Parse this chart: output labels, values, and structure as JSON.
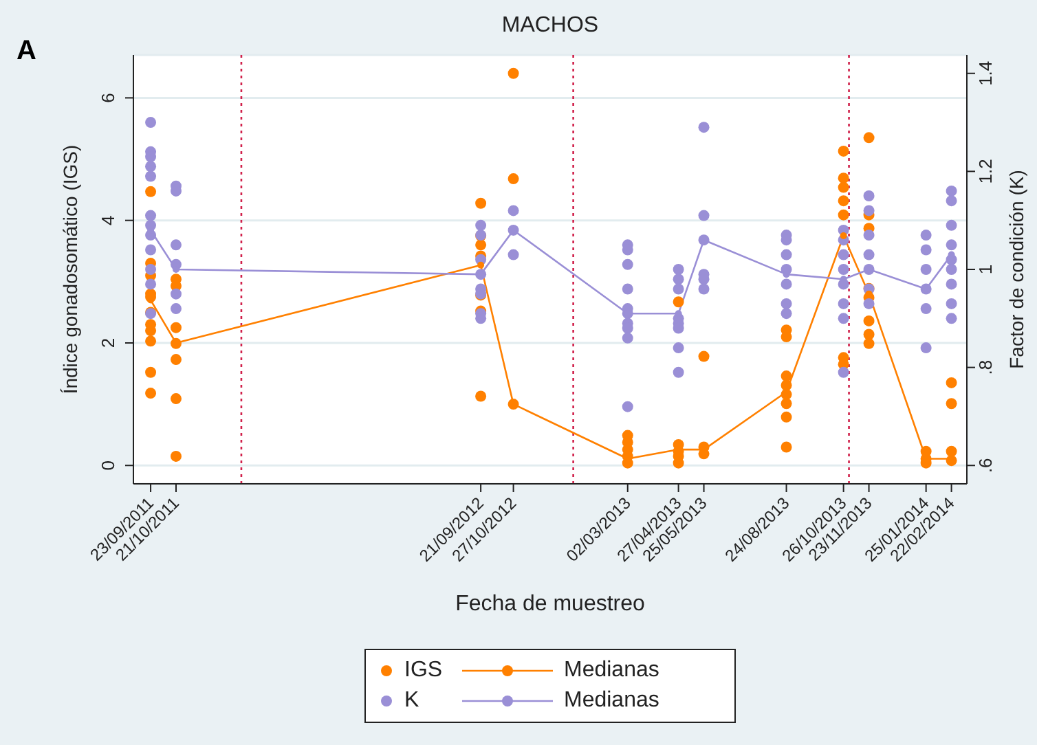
{
  "chart_data": {
    "type": "scatter",
    "title": "MACHOS",
    "xlabel": "Fecha de muestreo",
    "ylabel": "Índice gonadosomático (IGS)",
    "y2label": "Factor de condición (K)",
    "annotations": [
      "A"
    ],
    "xlim": [
      "2011-09-04",
      "2014-03-11"
    ],
    "xticks": [
      {
        "value": "2011-09-23",
        "label": "23/09/2011"
      },
      {
        "value": "2011-10-21",
        "label": "21/10/2011"
      },
      {
        "value": "2012-09-21",
        "label": "21/09/2012"
      },
      {
        "value": "2012-10-27",
        "label": "27/10/2012"
      },
      {
        "value": "2013-03-02",
        "label": "02/03/2013"
      },
      {
        "value": "2013-04-27",
        "label": "27/04/2013"
      },
      {
        "value": "2013-05-25",
        "label": "25/05/2013"
      },
      {
        "value": "2013-08-24",
        "label": "24/08/2013"
      },
      {
        "value": "2013-10-26",
        "label": "26/10/2013"
      },
      {
        "value": "2013-11-23",
        "label": "23/11/2013"
      },
      {
        "value": "2014-01-25",
        "label": "25/01/2014"
      },
      {
        "value": "2014-02-22",
        "label": "22/02/2014"
      }
    ],
    "ylim": [
      -0.3,
      6.7
    ],
    "yticks": [
      0,
      2,
      4,
      6
    ],
    "y2lim": [
      0.5625,
      1.4375
    ],
    "y2ticks": [
      {
        "value": 0.6,
        "label": ".6"
      },
      {
        "value": 0.8,
        "label": ".8"
      },
      1,
      1.2,
      1.4
    ],
    "grid": "y",
    "legend": "bottom",
    "ref_lines": [
      {
        "axis": "x",
        "value": "2012-01-01",
        "color": "#d0204a",
        "line_style": "dotted"
      },
      {
        "axis": "x",
        "value": "2013-01-01",
        "color": "#d0204a",
        "line_style": "dotted"
      },
      {
        "axis": "x",
        "value": "2013-11-01",
        "color": "#d0204a",
        "line_style": "dotted"
      }
    ],
    "series": [
      {
        "name": "IGS",
        "color": "#ff8000",
        "marker": "circle",
        "x": [
          "2011-09-23",
          "2011-09-23",
          "2011-09-23",
          "2011-09-23",
          "2011-09-23",
          "2011-09-23",
          "2011-09-23",
          "2011-09-23",
          "2011-09-23",
          "2011-09-23",
          "2011-09-23",
          "2011-10-21",
          "2011-10-21",
          "2011-10-21",
          "2011-10-21",
          "2011-10-21",
          "2011-10-21",
          "2011-10-21",
          "2012-09-21",
          "2012-09-21",
          "2012-09-21",
          "2012-09-21",
          "2012-09-21",
          "2012-09-21",
          "2012-09-21",
          "2012-10-27",
          "2012-10-27",
          "2012-10-27",
          "2013-03-02",
          "2013-03-02",
          "2013-03-02",
          "2013-03-02",
          "2013-03-02",
          "2013-04-27",
          "2013-04-27",
          "2013-04-27",
          "2013-04-27",
          "2013-04-27",
          "2013-05-25",
          "2013-05-25",
          "2013-05-25",
          "2013-08-24",
          "2013-08-24",
          "2013-08-24",
          "2013-08-24",
          "2013-08-24",
          "2013-08-24",
          "2013-08-24",
          "2013-08-24",
          "2013-10-26",
          "2013-10-26",
          "2013-10-26",
          "2013-10-26",
          "2013-10-26",
          "2013-10-26",
          "2013-10-26",
          "2013-11-23",
          "2013-11-23",
          "2013-11-23",
          "2013-11-23",
          "2013-11-23",
          "2013-11-23",
          "2013-11-23",
          "2013-11-23",
          "2014-01-25",
          "2014-01-25",
          "2014-01-25",
          "2014-02-22",
          "2014-02-22",
          "2014-02-22",
          "2014-02-22"
        ],
        "values": [
          4.47,
          3.3,
          3.1,
          2.8,
          2.75,
          2.5,
          2.3,
          2.2,
          2.03,
          1.52,
          1.18,
          3.04,
          2.93,
          2.25,
          1.99,
          1.73,
          1.09,
          0.15,
          4.28,
          3.75,
          3.6,
          3.42,
          2.78,
          2.52,
          1.13,
          6.4,
          4.68,
          1.0,
          0.49,
          0.38,
          0.26,
          0.15,
          0.04,
          2.67,
          0.34,
          0.23,
          0.15,
          0.04,
          1.78,
          0.3,
          0.19,
          2.21,
          2.1,
          1.46,
          1.31,
          1.16,
          1.01,
          0.79,
          0.3,
          5.13,
          4.69,
          4.54,
          4.32,
          4.09,
          1.76,
          1.65,
          5.35,
          4.09,
          3.87,
          2.89,
          2.74,
          2.36,
          2.14,
          1.99,
          0.23,
          0.11,
          0.04,
          1.35,
          1.01,
          0.23,
          0.08
        ]
      },
      {
        "name": "Medianas",
        "type": "line",
        "color": "#ff8000",
        "marker": "circle",
        "x": [
          "2011-09-23",
          "2011-10-21",
          "2012-09-21",
          "2012-10-27",
          "2013-03-02",
          "2013-04-27",
          "2013-05-25",
          "2013-08-24",
          "2013-10-26",
          "2013-11-23",
          "2014-01-25",
          "2014-02-22"
        ],
        "values": [
          2.7,
          2.0,
          3.27,
          1.0,
          0.11,
          0.26,
          0.26,
          1.2,
          3.75,
          2.8,
          0.11,
          0.11
        ]
      },
      {
        "name": "K",
        "color": "#9a8fd6",
        "marker": "circle",
        "axis": "y2",
        "x": [
          "2011-09-23",
          "2011-09-23",
          "2011-09-23",
          "2011-09-23",
          "2011-09-23",
          "2011-09-23",
          "2011-09-23",
          "2011-09-23",
          "2011-09-23",
          "2011-09-23",
          "2011-09-23",
          "2011-09-23",
          "2011-10-21",
          "2011-10-21",
          "2011-10-21",
          "2011-10-21",
          "2011-10-21",
          "2011-10-21",
          "2012-09-21",
          "2012-09-21",
          "2012-09-21",
          "2012-09-21",
          "2012-09-21",
          "2012-09-21",
          "2012-09-21",
          "2012-09-21",
          "2012-10-27",
          "2012-10-27",
          "2012-10-27",
          "2013-03-02",
          "2013-03-02",
          "2013-03-02",
          "2013-03-02",
          "2013-03-02",
          "2013-03-02",
          "2013-03-02",
          "2013-03-02",
          "2013-03-02",
          "2013-03-02",
          "2013-04-27",
          "2013-04-27",
          "2013-04-27",
          "2013-04-27",
          "2013-04-27",
          "2013-04-27",
          "2013-04-27",
          "2013-04-27",
          "2013-05-25",
          "2013-05-25",
          "2013-05-25",
          "2013-05-25",
          "2013-05-25",
          "2013-05-25",
          "2013-08-24",
          "2013-08-24",
          "2013-08-24",
          "2013-08-24",
          "2013-08-24",
          "2013-08-24",
          "2013-08-24",
          "2013-10-26",
          "2013-10-26",
          "2013-10-26",
          "2013-10-26",
          "2013-10-26",
          "2013-10-26",
          "2013-10-26",
          "2013-10-26",
          "2013-11-23",
          "2013-11-23",
          "2013-11-23",
          "2013-11-23",
          "2013-11-23",
          "2013-11-23",
          "2013-11-23",
          "2014-01-25",
          "2014-01-25",
          "2014-01-25",
          "2014-01-25",
          "2014-01-25",
          "2014-01-25",
          "2014-02-22",
          "2014-02-22",
          "2014-02-22",
          "2014-02-22",
          "2014-02-22",
          "2014-02-22",
          "2014-02-22",
          "2014-02-22",
          "2014-02-22"
        ],
        "values": [
          1.3,
          1.24,
          1.23,
          1.21,
          1.19,
          1.11,
          1.09,
          1.07,
          1.04,
          1.0,
          0.97,
          0.91,
          1.17,
          1.16,
          1.05,
          1.01,
          0.95,
          0.92,
          1.09,
          1.07,
          1.02,
          0.99,
          0.96,
          0.95,
          0.91,
          0.9,
          1.12,
          1.08,
          1.03,
          1.05,
          1.04,
          1.01,
          0.96,
          0.92,
          0.91,
          0.89,
          0.88,
          0.86,
          0.72,
          1.0,
          0.98,
          0.96,
          0.9,
          0.89,
          0.88,
          0.84,
          0.79,
          1.29,
          1.11,
          1.06,
          0.99,
          0.98,
          0.96,
          1.07,
          1.06,
          1.03,
          1.0,
          0.97,
          0.93,
          0.91,
          1.08,
          1.06,
          1.03,
          1.0,
          0.97,
          0.93,
          0.9,
          0.79,
          1.15,
          1.12,
          1.07,
          1.03,
          1.0,
          0.96,
          0.93,
          1.07,
          1.04,
          1.0,
          0.96,
          0.92,
          0.84,
          1.16,
          1.14,
          1.09,
          1.05,
          1.02,
          1.0,
          0.97,
          0.93,
          0.9
        ]
      },
      {
        "name": "Medianas",
        "type": "line",
        "color": "#9a8fd6",
        "marker": "circle",
        "axis": "y2",
        "x": [
          "2011-09-23",
          "2011-10-21",
          "2012-09-21",
          "2012-10-27",
          "2013-03-02",
          "2013-04-27",
          "2013-05-25",
          "2013-08-24",
          "2013-10-26",
          "2013-11-23",
          "2014-01-25",
          "2014-02-22"
        ],
        "values": [
          1.08,
          1.0,
          0.99,
          1.08,
          0.91,
          0.91,
          1.06,
          0.99,
          0.98,
          1.0,
          0.96,
          1.03
        ]
      }
    ]
  }
}
